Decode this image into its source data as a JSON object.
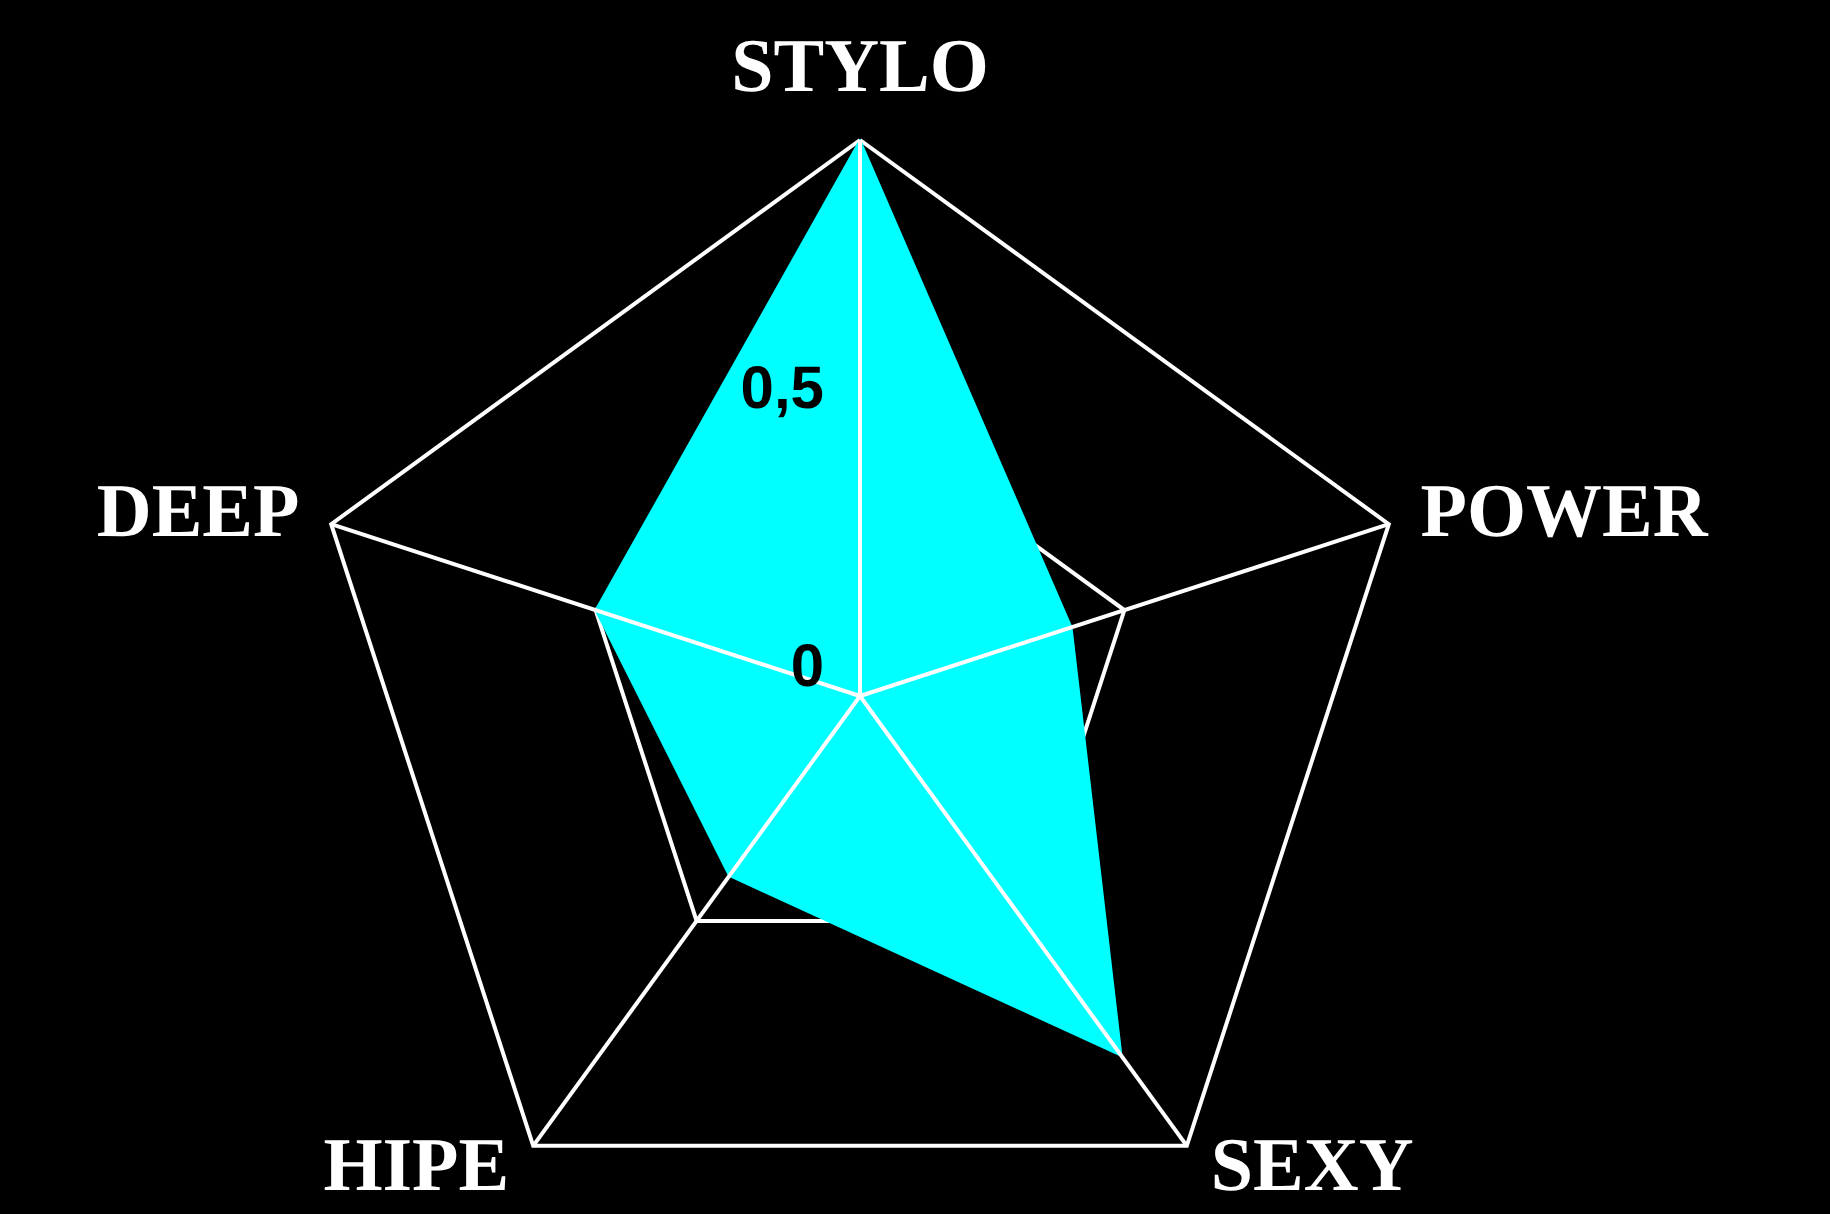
{
  "chart_data": {
    "type": "radar",
    "categories": [
      "STYLO",
      "POWER",
      "SEXY",
      "HIPE",
      "DEEP"
    ],
    "series": [
      {
        "color": "#00ffff",
        "values": [
          1,
          0.4,
          0.8,
          0.4,
          0.5
        ]
      }
    ],
    "ylim": [
      0,
      1
    ],
    "yticks": [
      0,
      {
        "value": 0.5,
        "label": "0,5"
      }
    ],
    "grid": true
  }
}
